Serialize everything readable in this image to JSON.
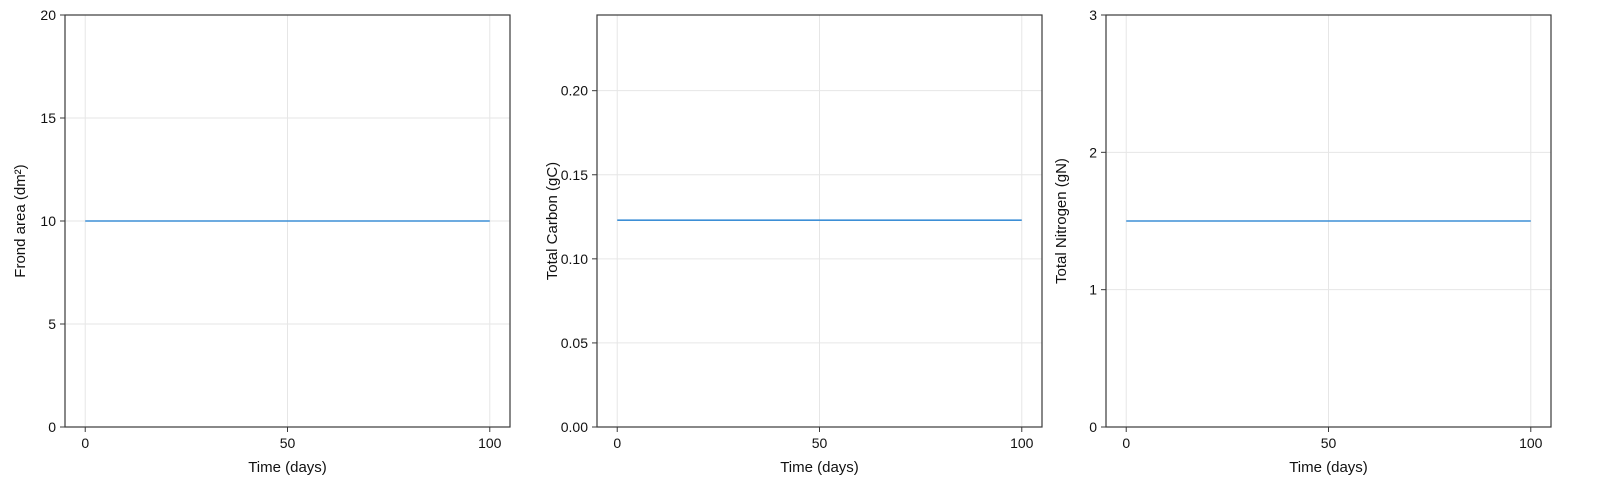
{
  "chart_data": [
    {
      "type": "line",
      "xlabel": "Time (days)",
      "ylabel": "Frond area (dm²)",
      "xlim": [
        -5,
        105
      ],
      "ylim": [
        0,
        20
      ],
      "xticks": [
        0,
        50,
        100
      ],
      "xtick_labels": [
        "0",
        "50",
        "100"
      ],
      "yticks": [
        0,
        5,
        10,
        15,
        20
      ],
      "ytick_labels": [
        "0",
        "5",
        "10",
        "15",
        "20"
      ],
      "grid": true,
      "series": [
        {
          "color": "#3d8fd6",
          "x": [
            0,
            100
          ],
          "y": [
            10,
            10
          ]
        }
      ]
    },
    {
      "type": "line",
      "xlabel": "Time (days)",
      "ylabel": "Total Carbon (gC)",
      "xlim": [
        -5,
        105
      ],
      "ylim": [
        0,
        0.245
      ],
      "xticks": [
        0,
        50,
        100
      ],
      "xtick_labels": [
        "0",
        "50",
        "100"
      ],
      "yticks": [
        0,
        0.05,
        0.1,
        0.15,
        0.2
      ],
      "ytick_labels": [
        "0.00",
        "0.05",
        "0.10",
        "0.15",
        "0.20"
      ],
      "grid": true,
      "series": [
        {
          "color": "#3d8fd6",
          "x": [
            0,
            100
          ],
          "y": [
            0.123,
            0.123
          ]
        }
      ]
    },
    {
      "type": "line",
      "xlabel": "Time (days)",
      "ylabel": "Total Nitrogen (gN)",
      "xlim": [
        -5,
        105
      ],
      "ylim": [
        0,
        3
      ],
      "xticks": [
        0,
        50,
        100
      ],
      "xtick_labels": [
        "0",
        "50",
        "100"
      ],
      "yticks": [
        0,
        1,
        2,
        3
      ],
      "ytick_labels": [
        "0",
        "1",
        "2",
        "3"
      ],
      "grid": true,
      "series": [
        {
          "color": "#3d8fd6",
          "x": [
            0,
            100
          ],
          "y": [
            1.5,
            1.5
          ]
        }
      ]
    }
  ]
}
